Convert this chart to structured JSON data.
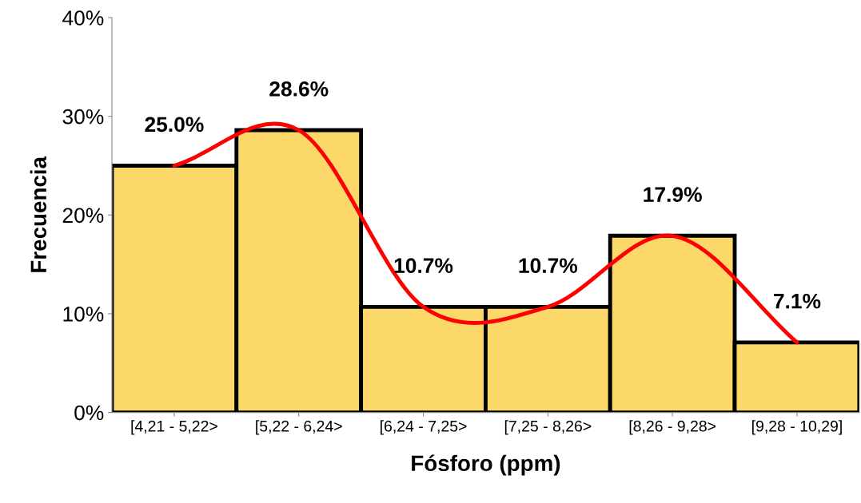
{
  "chart_data": {
    "type": "bar",
    "xlabel": "Fósforo (ppm)",
    "ylabel": "Frecuencia",
    "categories": [
      "[4,21 - 5,22>",
      "[5,22 - 6,24>",
      "[6,24 - 7,25>",
      "[7,25 - 8,26>",
      "[8,26 - 9,28>",
      "[9,28 - 10,29]"
    ],
    "series": [
      {
        "color": "#fcd76a",
        "values": [
          25.0,
          28.6,
          10.7,
          10.7,
          17.9,
          7.1
        ],
        "value_labels": [
          "25.0%",
          "28.6%",
          "10.7%",
          "10.7%",
          "17.9%",
          "7.1%"
        ]
      },
      {
        "type": "line",
        "color": "#ff0000",
        "values": [
          25.0,
          28.6,
          10.7,
          10.7,
          17.9,
          7.1
        ]
      }
    ],
    "ylim": [
      0,
      40
    ],
    "yticks": [
      {
        "value": 0,
        "label": "0%"
      },
      {
        "value": 10,
        "label": "10%"
      },
      {
        "value": 20,
        "label": "20%"
      },
      {
        "value": 30,
        "label": "30%"
      },
      {
        "value": 40,
        "label": "40%"
      }
    ],
    "grid": false,
    "legend": false
  }
}
